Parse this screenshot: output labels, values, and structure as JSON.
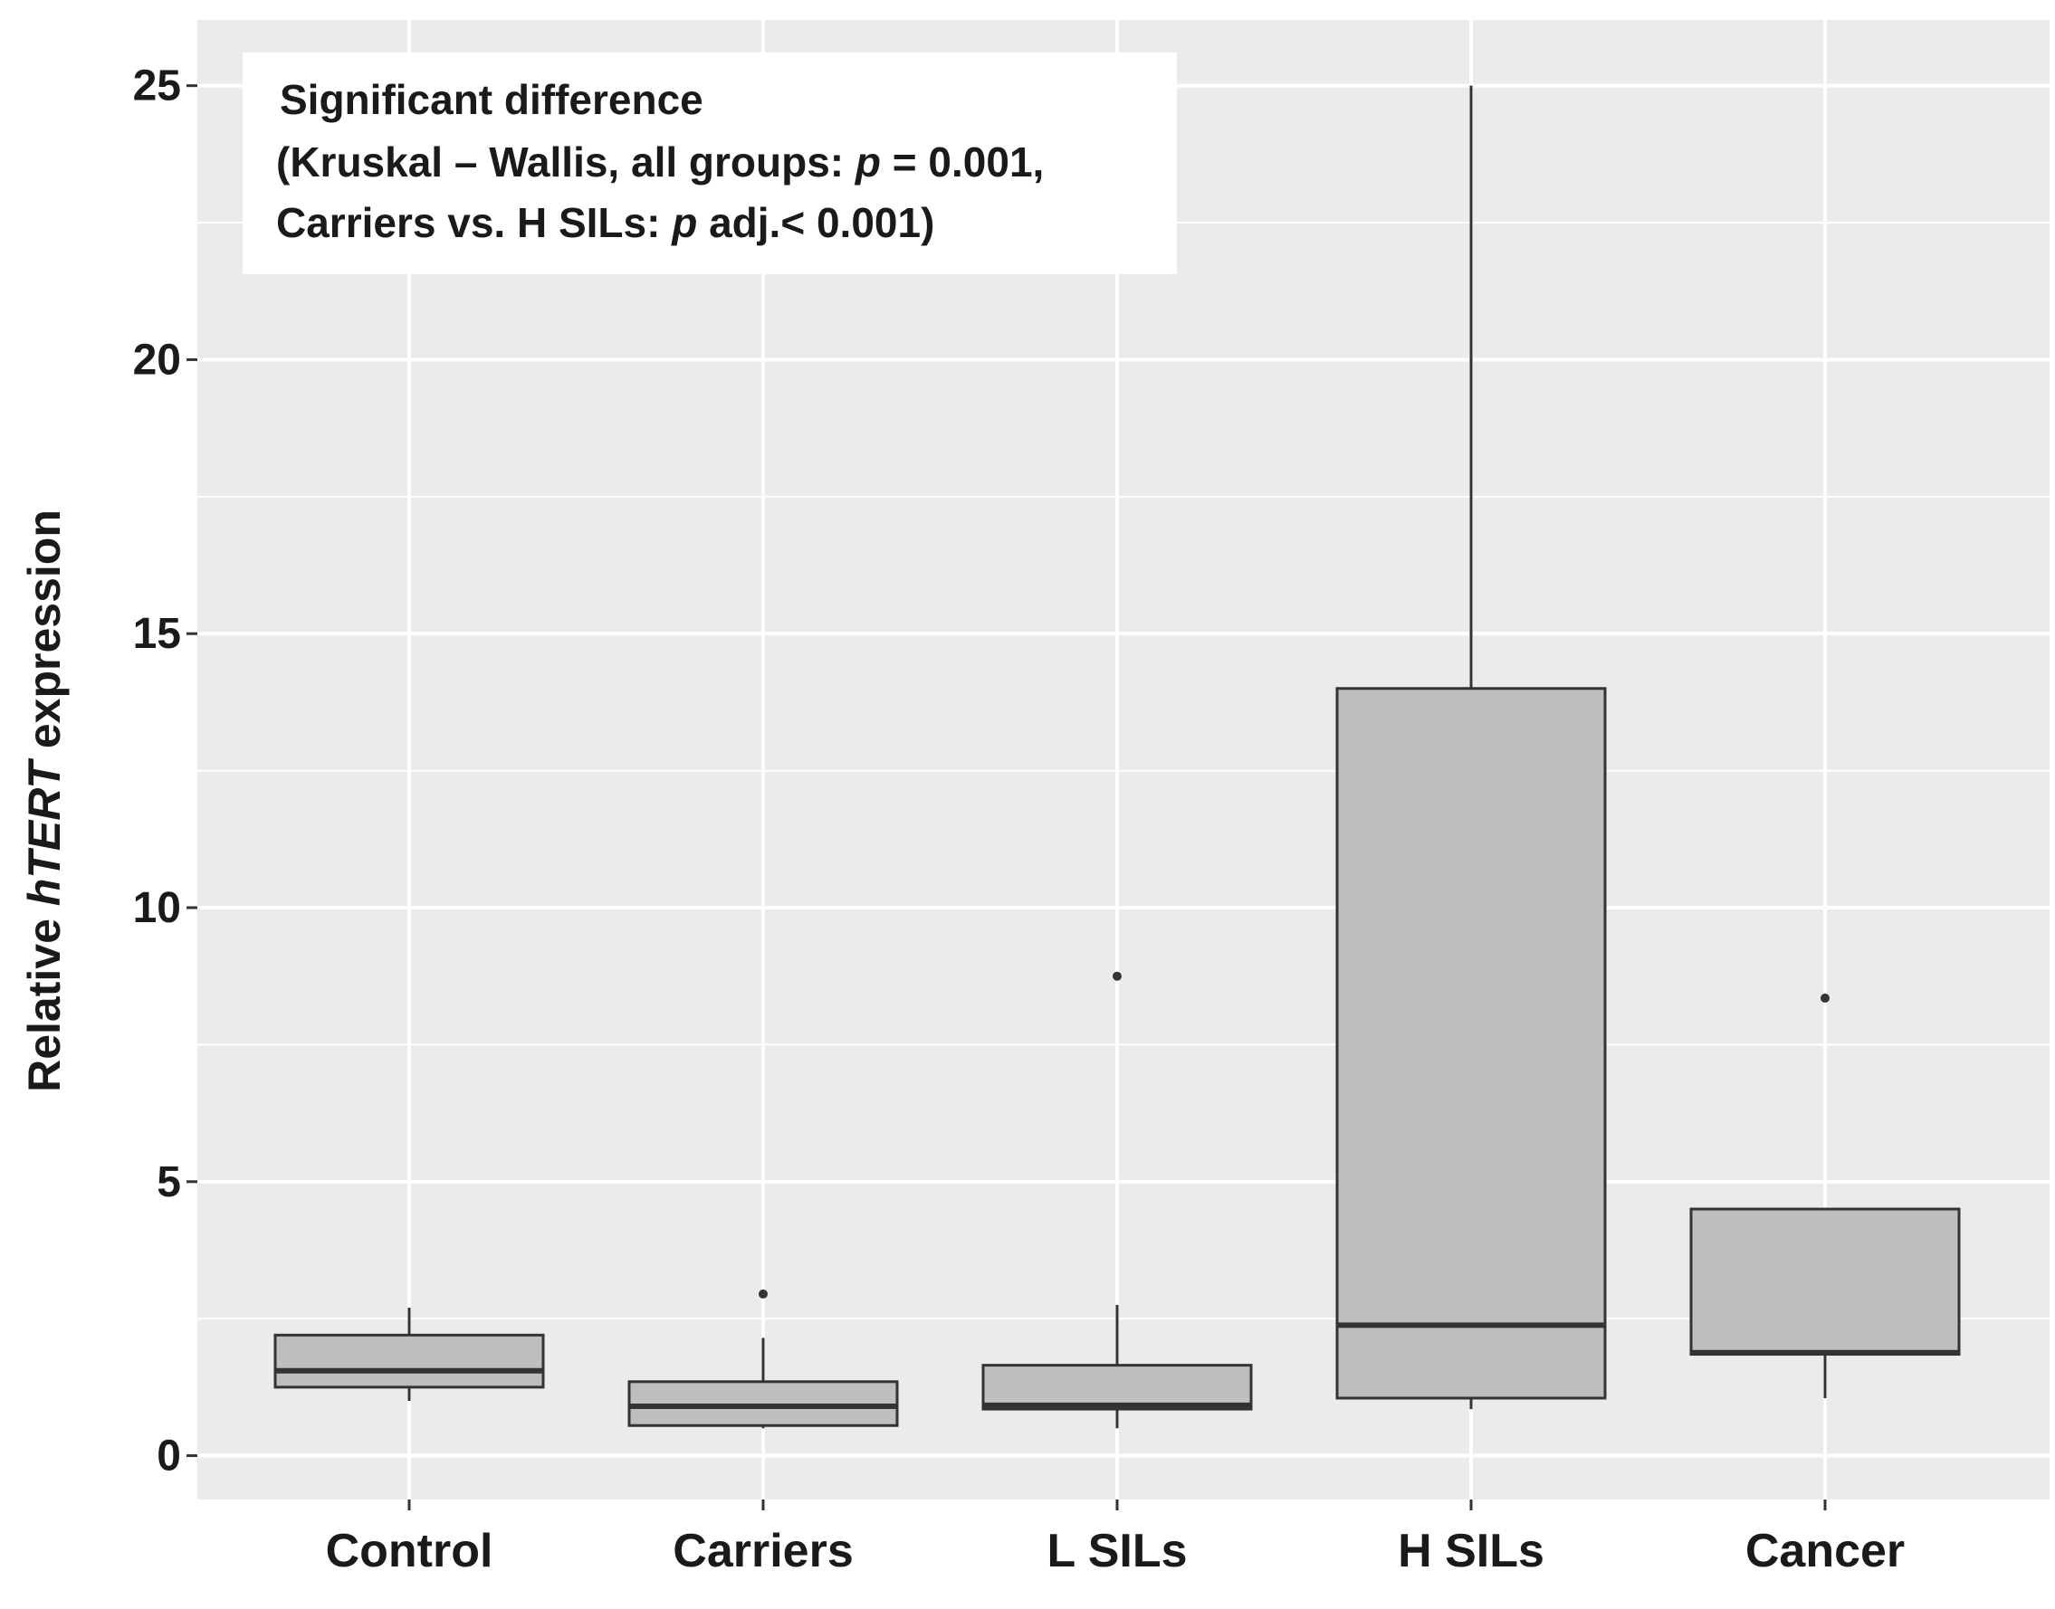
{
  "chart_data": {
    "type": "box",
    "title": "",
    "xlabel": "",
    "ylabel_parts": [
      "Relative ",
      "hTERT",
      " expression"
    ],
    "ylim": [
      -0.8,
      26.2
    ],
    "yticks": [
      0,
      5,
      10,
      15,
      20,
      25
    ],
    "ytick_labels": [
      "0",
      "5",
      "10",
      "15",
      "20",
      "25"
    ],
    "grid": true,
    "categories": [
      "Control",
      "Carriers",
      "L SILs",
      "H SILs",
      "Cancer"
    ],
    "boxes": [
      {
        "name": "Control",
        "whisker_low": 1.0,
        "q1": 1.25,
        "median": 1.55,
        "q3": 2.2,
        "whisker_high": 2.7,
        "outliers": []
      },
      {
        "name": "Carriers",
        "whisker_low": 0.5,
        "q1": 0.55,
        "median": 0.9,
        "q3": 1.35,
        "whisker_high": 2.15,
        "outliers": [
          2.95
        ]
      },
      {
        "name": "L SILs",
        "whisker_low": 0.5,
        "q1": 0.85,
        "median": 0.92,
        "q3": 1.65,
        "whisker_high": 2.75,
        "outliers": [
          8.75
        ]
      },
      {
        "name": "H SILs",
        "whisker_low": 0.85,
        "q1": 1.05,
        "median": 2.38,
        "q3": 14.0,
        "whisker_high": 25.0,
        "outliers": []
      },
      {
        "name": "Cancer",
        "whisker_low": 1.05,
        "q1": 1.85,
        "median": 1.88,
        "q3": 4.5,
        "whisker_high": 4.5,
        "outliers": [
          8.35
        ]
      }
    ],
    "annotation": {
      "line1": "Significant difference",
      "line2_a": "(Kruskal – Wallis, all groups: ",
      "line2_p": "p",
      "line2_b": " = 0.001,",
      "line3_a": "Carriers vs. H SILs: ",
      "line3_p": "p",
      "line3_b": " adj.< 0.001)"
    },
    "colors": {
      "panel": "#ebebeb",
      "grid": "#ffffff",
      "box_fill": "#bebebe",
      "box_stroke": "#333333",
      "text": "#1a1a1a"
    }
  }
}
